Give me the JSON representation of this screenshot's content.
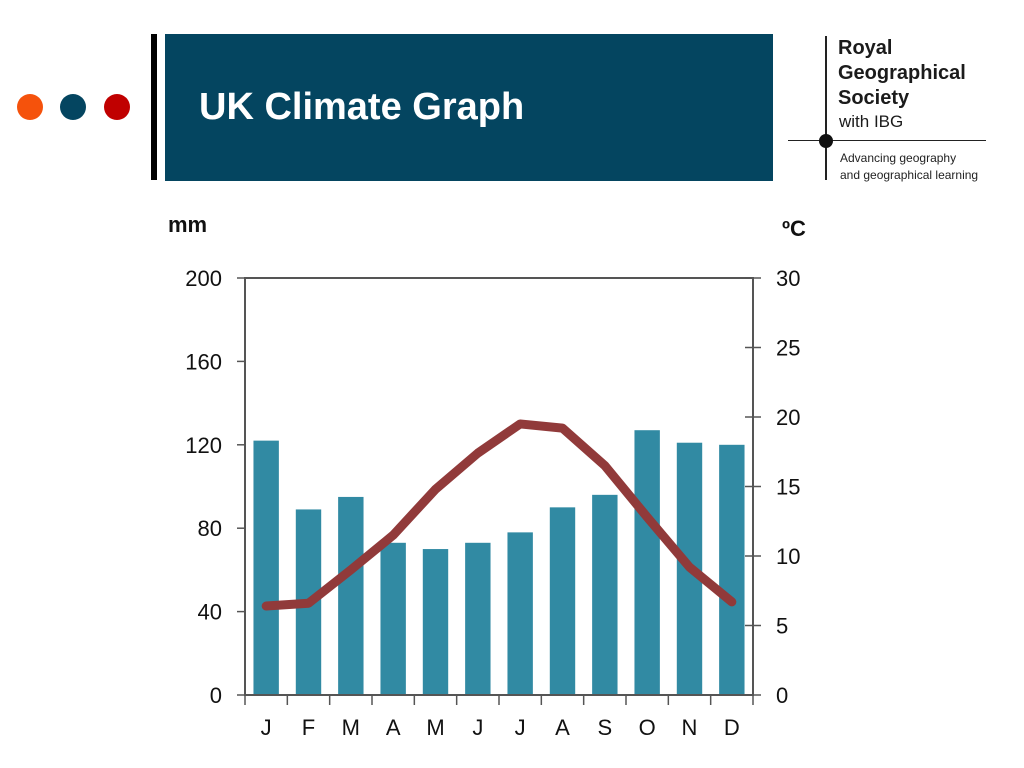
{
  "header": {
    "title": "UK Climate Graph",
    "dot_colors": [
      "#f5520c",
      "#044560",
      "#c00000"
    ],
    "band_color": "#044560"
  },
  "logo": {
    "name": "Royal\nGeographical\nSociety",
    "with": "with IBG",
    "tagline": "Advancing geography\nand geographical learning"
  },
  "chart_data": {
    "type": "bar",
    "categories": [
      "J",
      "F",
      "M",
      "A",
      "M",
      "J",
      "J",
      "A",
      "S",
      "O",
      "N",
      "D"
    ],
    "series": [
      {
        "type": "bar",
        "axis": "left",
        "color": "#318aa3",
        "values": [
          122,
          89,
          95,
          73,
          70,
          73,
          78,
          90,
          96,
          127,
          121,
          120
        ]
      },
      {
        "type": "line",
        "axis": "right",
        "color": "#913a3a",
        "values": [
          6.4,
          6.6,
          9.0,
          11.5,
          14.8,
          17.4,
          19.5,
          19.2,
          16.5,
          12.8,
          9.2,
          6.7
        ]
      }
    ],
    "y_left": {
      "label": "mm",
      "min": 0,
      "max": 200,
      "ticks": [
        0,
        40,
        80,
        120,
        160,
        200
      ]
    },
    "y_right": {
      "label": "ºC",
      "min": 0,
      "max": 30,
      "ticks": [
        0,
        5,
        10,
        15,
        20,
        25,
        30
      ]
    },
    "grid": false,
    "legend": "none"
  }
}
